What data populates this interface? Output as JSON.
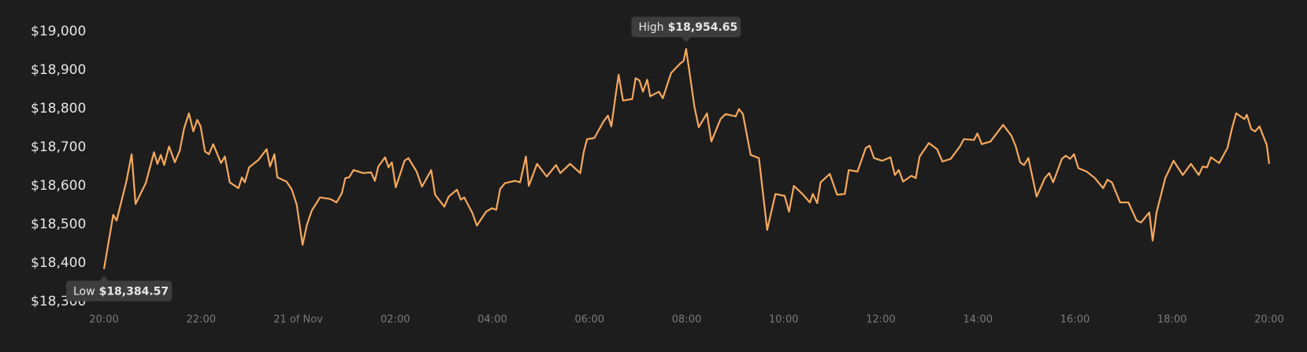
{
  "chart_data": {
    "type": "line",
    "x": [
      0,
      0.19,
      0.26,
      0.46,
      0.57,
      0.65,
      0.86,
      1.03,
      1.1,
      1.17,
      1.24,
      1.34,
      1.46,
      1.56,
      1.65,
      1.75,
      1.84,
      1.92,
      1.99,
      2.08,
      2.16,
      2.25,
      2.41,
      2.49,
      2.59,
      2.77,
      2.84,
      2.9,
      2.99,
      3.18,
      3.35,
      3.42,
      3.51,
      3.57,
      3.76,
      3.87,
      3.97,
      4.09,
      4.18,
      4.28,
      4.45,
      4.66,
      4.79,
      4.9,
      4.97,
      5.05,
      5.14,
      5.34,
      5.5,
      5.58,
      5.65,
      5.79,
      5.86,
      5.93,
      6.01,
      6.19,
      6.27,
      6.44,
      6.55,
      6.63,
      6.74,
      6.82,
      7.01,
      7.1,
      7.27,
      7.35,
      7.42,
      7.59,
      7.68,
      7.87,
      7.99,
      8.08,
      8.16,
      8.26,
      8.47,
      8.57,
      8.69,
      8.75,
      8.92,
      9.12,
      9.31,
      9.4,
      9.6,
      9.81,
      9.88,
      9.95,
      10.1,
      10.29,
      10.38,
      10.45,
      10.53,
      10.6,
      10.69,
      10.88,
      10.95,
      11.03,
      11.1,
      11.19,
      11.25,
      11.43,
      11.51,
      11.68,
      11.86,
      11.94,
      11.99,
      12.08,
      12.16,
      12.25,
      12.42,
      12.51,
      12.7,
      12.8,
      13.01,
      13.08,
      13.16,
      13.32,
      13.49,
      13.57,
      13.66,
      13.83,
      14.02,
      14.11,
      14.21,
      14.4,
      14.54,
      14.6,
      14.69,
      14.76,
      14.95,
      15.1,
      15.26,
      15.34,
      15.52,
      15.69,
      15.77,
      15.86,
      16.03,
      16.2,
      16.29,
      16.37,
      16.46,
      16.63,
      16.72,
      16.8,
      16.99,
      17.16,
      17.27,
      17.44,
      17.63,
      17.71,
      17.92,
      17.99,
      18.08,
      18.26,
      18.52,
      18.69,
      18.78,
      18.87,
      18.95,
      19.04,
      19.21,
      19.38,
      19.47,
      19.55,
      19.73,
      19.81,
      19.9,
      19.98,
      20.07,
      20.24,
      20.41,
      20.58,
      20.67,
      20.76,
      20.93,
      21.1,
      21.27,
      21.36,
      21.53,
      21.6,
      21.68,
      21.86,
      22.03,
      22.22,
      22.39,
      22.55,
      22.63,
      22.72,
      22.8,
      22.97,
      23.14,
      23.23,
      23.32,
      23.49,
      23.54,
      23.63,
      23.71,
      23.8,
      23.95,
      24
    ],
    "series": [
      {
        "color": "#f7a95c",
        "values": [
          18384.57,
          18525,
          18510,
          18611,
          18682,
          18553,
          18607,
          18687,
          18657,
          18680,
          18654,
          18702,
          18661,
          18691,
          18749,
          18788,
          18741,
          18771,
          18754,
          18689,
          18682,
          18708,
          18659,
          18676,
          18609,
          18594,
          18622,
          18609,
          18648,
          18667,
          18695,
          18650,
          18682,
          18622,
          18611,
          18590,
          18551,
          18447,
          18499,
          18536,
          18570,
          18566,
          18557,
          18581,
          18620,
          18622,
          18641,
          18633,
          18635,
          18613,
          18650,
          18674,
          18648,
          18661,
          18596,
          18665,
          18672,
          18637,
          18598,
          18616,
          18641,
          18577,
          18546,
          18572,
          18590,
          18564,
          18570,
          18529,
          18497,
          18533,
          18542,
          18538,
          18592,
          18607,
          18613,
          18609,
          18676,
          18600,
          18657,
          18624,
          18654,
          18633,
          18657,
          18633,
          18687,
          18721,
          18724,
          18767,
          18782,
          18754,
          18827,
          18888,
          18821,
          18825,
          18879,
          18873,
          18844,
          18875,
          18832,
          18844,
          18827,
          18892,
          18916,
          18924,
          18954.65,
          18877,
          18806,
          18752,
          18788,
          18715,
          18773,
          18786,
          18780,
          18799,
          18786,
          18680,
          18672,
          18585,
          18486,
          18579,
          18574,
          18533,
          18600,
          18577,
          18557,
          18579,
          18555,
          18609,
          18631,
          18577,
          18579,
          18641,
          18637,
          18698,
          18704,
          18672,
          18665,
          18674,
          18628,
          18641,
          18611,
          18626,
          18620,
          18676,
          18711,
          18695,
          18663,
          18670,
          18702,
          18721,
          18719,
          18736,
          18708,
          18715,
          18758,
          18730,
          18702,
          18661,
          18654,
          18672,
          18572,
          18620,
          18633,
          18609,
          18670,
          18678,
          18670,
          18682,
          18646,
          18637,
          18620,
          18594,
          18616,
          18609,
          18557,
          18557,
          18510,
          18505,
          18531,
          18458,
          18531,
          18620,
          18665,
          18628,
          18657,
          18628,
          18650,
          18648,
          18674,
          18659,
          18698,
          18747,
          18788,
          18773,
          18784,
          18747,
          18741,
          18754,
          18706,
          18657
        ]
      }
    ],
    "xlim": [
      0,
      24
    ],
    "xticks": [
      {
        "value": 0,
        "label": "20:00"
      },
      {
        "value": 2,
        "label": "22:00"
      },
      {
        "value": 4,
        "label": "21 of Nov"
      },
      {
        "value": 6,
        "label": "02:00"
      },
      {
        "value": 8,
        "label": "04:00"
      },
      {
        "value": 10,
        "label": "06:00"
      },
      {
        "value": 12,
        "label": "08:00"
      },
      {
        "value": 14,
        "label": "10:00"
      },
      {
        "value": 16,
        "label": "12:00"
      },
      {
        "value": 18,
        "label": "14:00"
      },
      {
        "value": 20,
        "label": "16:00"
      },
      {
        "value": 22,
        "label": "18:00"
      },
      {
        "value": 24,
        "label": "20:00"
      }
    ],
    "ylim": [
      18300,
      19000
    ],
    "yticks": [
      {
        "value": 18300,
        "label": "$18,300"
      },
      {
        "value": 18400,
        "label": "$18,400"
      },
      {
        "value": 18500,
        "label": "$18,500"
      },
      {
        "value": 18600,
        "label": "$18,600"
      },
      {
        "value": 18700,
        "label": "$18,700"
      },
      {
        "value": 18800,
        "label": "$18,800"
      },
      {
        "value": 18900,
        "label": "$18,900"
      },
      {
        "value": 19000,
        "label": "$19,000"
      }
    ],
    "grid": false,
    "annotations": [
      {
        "label": "High",
        "text": "$18,954.65"
      },
      {
        "label": "Low",
        "text": "$18,384.57"
      }
    ]
  }
}
